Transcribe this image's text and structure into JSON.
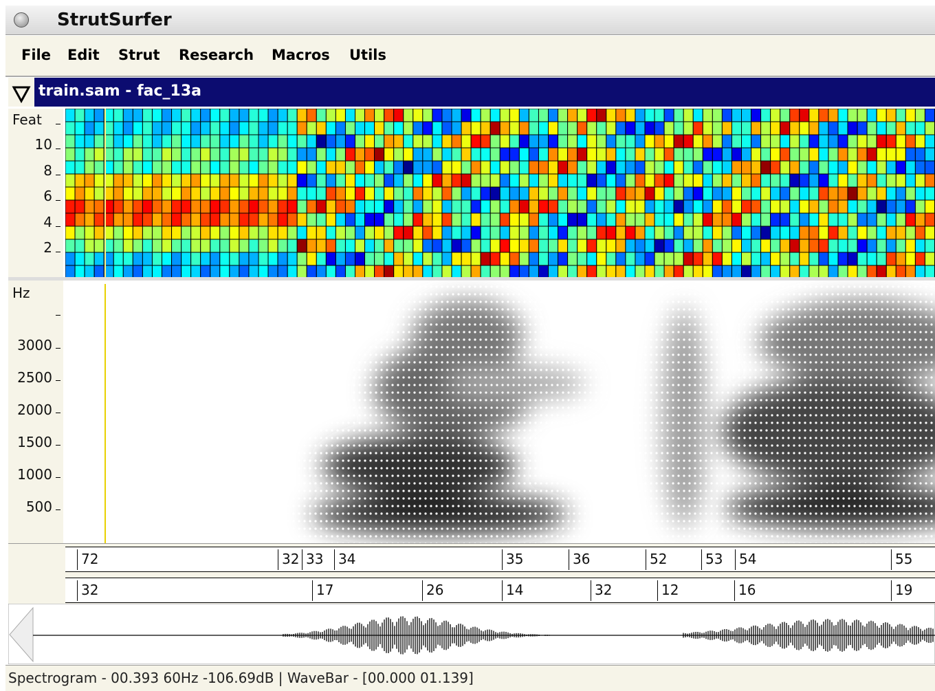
{
  "window": {
    "title": "StrutSurfer"
  },
  "menu": [
    "File",
    "Edit",
    "Strut",
    "Research",
    "Macros",
    "Utils"
  ],
  "panel": {
    "title": "train.sam - fac_13a"
  },
  "feature_axis": {
    "label": "Feat",
    "ticks": [
      "10",
      "8",
      "6",
      "4",
      "2"
    ]
  },
  "spectrogram_axis": {
    "label": "Hz",
    "ticks": [
      "3000",
      "2500",
      "2000",
      "1500",
      "1000",
      "500"
    ]
  },
  "segments": {
    "row1": [
      "72",
      "32",
      "33",
      "34",
      "35",
      "36",
      "52",
      "53",
      "54",
      "55"
    ],
    "row2": [
      "32",
      "17",
      "26",
      "14",
      "32",
      "12",
      "16",
      "19"
    ]
  },
  "status": "Spectrogram - 00.393 60Hz -106.69dB | WaveBar - [00.000 01.139]"
}
